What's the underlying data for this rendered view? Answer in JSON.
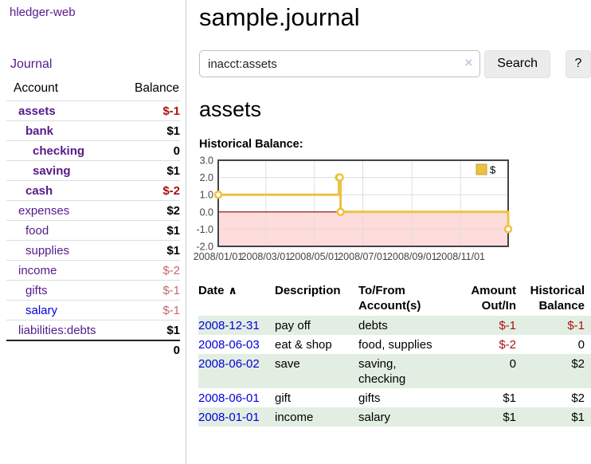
{
  "app": {
    "title": "hledger-web",
    "nav_journal": "Journal"
  },
  "colors": {
    "link_purple": "#551a8b",
    "link_blue": "#0000dd",
    "negative": "#aa1111",
    "negative_soft": "#c46a6a",
    "row_stripe_green": "#e3eee3",
    "chart_gold": "#edc240",
    "chart_negative_region": "#ffdcdc",
    "chart_zero_line": "#8b0000"
  },
  "sidebar": {
    "columns": {
      "account": "Account",
      "balance": "Balance"
    },
    "accounts": [
      {
        "name": "assets",
        "depth": 1,
        "balance": "$-1",
        "bold": true,
        "neg": "strong",
        "unvisited": false
      },
      {
        "name": "bank",
        "depth": 2,
        "balance": "$1",
        "bold": true,
        "neg": null,
        "unvisited": false
      },
      {
        "name": "checking",
        "depth": 3,
        "balance": "0",
        "bold": true,
        "neg": null,
        "unvisited": false
      },
      {
        "name": "saving",
        "depth": 3,
        "balance": "$1",
        "bold": true,
        "neg": null,
        "unvisited": false
      },
      {
        "name": "cash",
        "depth": 2,
        "balance": "$-2",
        "bold": true,
        "neg": "strong",
        "unvisited": false
      },
      {
        "name": "expenses",
        "depth": 1,
        "balance": "$2",
        "bold": false,
        "neg": null,
        "unvisited": false
      },
      {
        "name": "food",
        "depth": 2,
        "balance": "$1",
        "bold": false,
        "neg": null,
        "unvisited": false
      },
      {
        "name": "supplies",
        "depth": 2,
        "balance": "$1",
        "bold": false,
        "neg": null,
        "unvisited": false
      },
      {
        "name": "income",
        "depth": 1,
        "balance": "$-2",
        "bold": false,
        "neg": "soft",
        "unvisited": false
      },
      {
        "name": "gifts",
        "depth": 2,
        "balance": "$-1",
        "bold": false,
        "neg": "soft",
        "unvisited": false
      },
      {
        "name": "salary",
        "depth": 2,
        "balance": "$-1",
        "bold": false,
        "neg": "soft",
        "unvisited": true
      },
      {
        "name": "liabilities:debts",
        "depth": 1,
        "balance": "$1",
        "bold": false,
        "neg": null,
        "unvisited": false
      }
    ],
    "total": "0"
  },
  "header": {
    "title": "sample.journal"
  },
  "search": {
    "value": "inacct:assets",
    "clear_icon": "×",
    "button_label": "Search",
    "help_label": "?"
  },
  "account_page": {
    "heading": "assets",
    "chart_label": "Historical Balance:"
  },
  "chart_data": {
    "type": "line",
    "step": true,
    "title": "Historical Balance",
    "series": [
      {
        "name": "$",
        "color": "#edc240",
        "points": [
          [
            "2008-01-01",
            1.0
          ],
          [
            "2008-06-01",
            2.0
          ],
          [
            "2008-06-02",
            2.0
          ],
          [
            "2008-06-03",
            0.0
          ],
          [
            "2008-12-31",
            -1.0
          ]
        ]
      }
    ],
    "xlim": [
      "2008-01-01",
      "2008-12-31"
    ],
    "ylim": [
      -2,
      3
    ],
    "x_ticks": [
      "2008/01/01",
      "2008/03/01",
      "2008/05/01",
      "2008/07/01",
      "2008/09/01",
      "2008/11/01"
    ],
    "y_ticks": [
      "3.0",
      "2.0",
      "1.0",
      "0.0",
      "-1.0",
      "-2.0"
    ],
    "grid": true,
    "legend_position": "top-right",
    "negative_region_color": "#ffdcdc",
    "zero_line_color": "#8b0000"
  },
  "register": {
    "sort_indicator": "∧",
    "columns": [
      "Date",
      "Description",
      "To/From Account(s)",
      "Amount Out/In",
      "Historical Balance"
    ],
    "rows": [
      {
        "date": "2008-12-31",
        "description": "pay off",
        "accounts": "debts",
        "amount": "$-1",
        "amount_neg": true,
        "balance": "$-1",
        "balance_neg": true
      },
      {
        "date": "2008-06-03",
        "description": "eat & shop",
        "accounts": "food, supplies",
        "amount": "$-2",
        "amount_neg": true,
        "balance": "0",
        "balance_neg": false
      },
      {
        "date": "2008-06-02",
        "description": "save",
        "accounts": "saving, checking",
        "amount": "0",
        "amount_neg": false,
        "balance": "$2",
        "balance_neg": false
      },
      {
        "date": "2008-06-01",
        "description": "gift",
        "accounts": "gifts",
        "amount": "$1",
        "amount_neg": false,
        "balance": "$2",
        "balance_neg": false
      },
      {
        "date": "2008-01-01",
        "description": "income",
        "accounts": "salary",
        "amount": "$1",
        "amount_neg": false,
        "balance": "$1",
        "balance_neg": false
      }
    ]
  }
}
